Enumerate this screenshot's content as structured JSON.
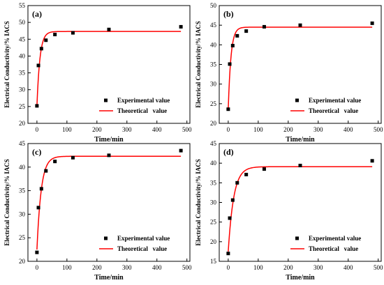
{
  "figure": {
    "legend_experimental": "Experimental value",
    "legend_theoretical": "Theoretical   value",
    "xlabel": "Time/min",
    "ylabel": "Electrical Conductivity/% IACS",
    "colors": {
      "curve": "#ff0000",
      "points": "#000000",
      "axis": "#000000"
    }
  },
  "chart_data": [
    {
      "type": "scatter",
      "panel_label": "(a)",
      "xlabel": "Time/min",
      "ylabel": "Electrical Conductivity/% IACS",
      "xlim": [
        -30,
        510
      ],
      "ylim": [
        20,
        55
      ],
      "xticks": [
        0,
        100,
        200,
        300,
        400,
        500
      ],
      "yticks": [
        20,
        25,
        30,
        35,
        40,
        45,
        50,
        55
      ],
      "legend": "bottom-right",
      "grid": false,
      "series": [
        {
          "name": "Experimental value",
          "kind": "scatter",
          "x": [
            0,
            5,
            15,
            30,
            60,
            120,
            240,
            480
          ],
          "y": [
            25.2,
            37.2,
            42.2,
            44.7,
            46.4,
            46.9,
            47.9,
            48.7
          ]
        },
        {
          "name": "Theoretical   value",
          "kind": "line",
          "model": "exponential_saturation",
          "x_range": [
            0,
            480
          ],
          "y0": 25.2,
          "y_inf": 47.3,
          "rate_per_min": 0.1
        }
      ]
    },
    {
      "type": "scatter",
      "panel_label": "(b)",
      "xlabel": "Time/min",
      "ylabel": "Electrical Conductivity/% IACS",
      "xlim": [
        -30,
        510
      ],
      "ylim": [
        20,
        50
      ],
      "xticks": [
        0,
        100,
        200,
        300,
        400,
        500
      ],
      "yticks": [
        20,
        25,
        30,
        35,
        40,
        45,
        50
      ],
      "legend": "bottom-right",
      "grid": false,
      "series": [
        {
          "name": "Experimental value",
          "kind": "scatter",
          "x": [
            0,
            5,
            15,
            30,
            60,
            120,
            240,
            480
          ],
          "y": [
            23.6,
            35.1,
            39.8,
            42.3,
            43.5,
            44.6,
            45.0,
            45.5
          ]
        },
        {
          "name": "Theoretical   value",
          "kind": "line",
          "model": "exponential_saturation",
          "x_range": [
            0,
            480
          ],
          "y0": 23.6,
          "y_inf": 44.5,
          "rate_per_min": 0.11
        }
      ]
    },
    {
      "type": "scatter",
      "panel_label": "(c)",
      "xlabel": "Time/min",
      "ylabel": "Electrical Conductivity/% IACS",
      "xlim": [
        -30,
        510
      ],
      "ylim": [
        20,
        45
      ],
      "xticks": [
        0,
        100,
        200,
        300,
        400,
        500
      ],
      "yticks": [
        20,
        25,
        30,
        35,
        40,
        45
      ],
      "legend": "bottom-right",
      "grid": false,
      "series": [
        {
          "name": "Experimental value",
          "kind": "scatter",
          "x": [
            0,
            5,
            15,
            30,
            60,
            120,
            240,
            480
          ],
          "y": [
            21.9,
            31.4,
            35.4,
            39.2,
            41.2,
            42.0,
            42.5,
            43.5
          ]
        },
        {
          "name": "Theoretical   value",
          "kind": "line",
          "model": "exponential_saturation",
          "x_range": [
            0,
            480
          ],
          "y0": 22.5,
          "y_inf": 42.3,
          "rate_per_min": 0.07
        }
      ]
    },
    {
      "type": "scatter",
      "panel_label": "(d)",
      "xlabel": "Time/min",
      "ylabel": "Electrical Conductivity/% IACS",
      "xlim": [
        -30,
        510
      ],
      "ylim": [
        15,
        45
      ],
      "xticks": [
        0,
        100,
        200,
        300,
        400,
        500
      ],
      "yticks": [
        15,
        20,
        25,
        30,
        35,
        40,
        45
      ],
      "legend": "bottom-right",
      "grid": false,
      "series": [
        {
          "name": "Experimental value",
          "kind": "scatter",
          "x": [
            0,
            5,
            15,
            30,
            60,
            120,
            240,
            480
          ],
          "y": [
            17.0,
            26.0,
            30.6,
            35.0,
            37.1,
            38.5,
            39.4,
            40.6
          ]
        },
        {
          "name": "Theoretical   value",
          "kind": "line",
          "model": "exponential_saturation",
          "x_range": [
            0,
            480
          ],
          "y0": 17.5,
          "y_inf": 39.1,
          "rate_per_min": 0.055
        }
      ]
    }
  ]
}
